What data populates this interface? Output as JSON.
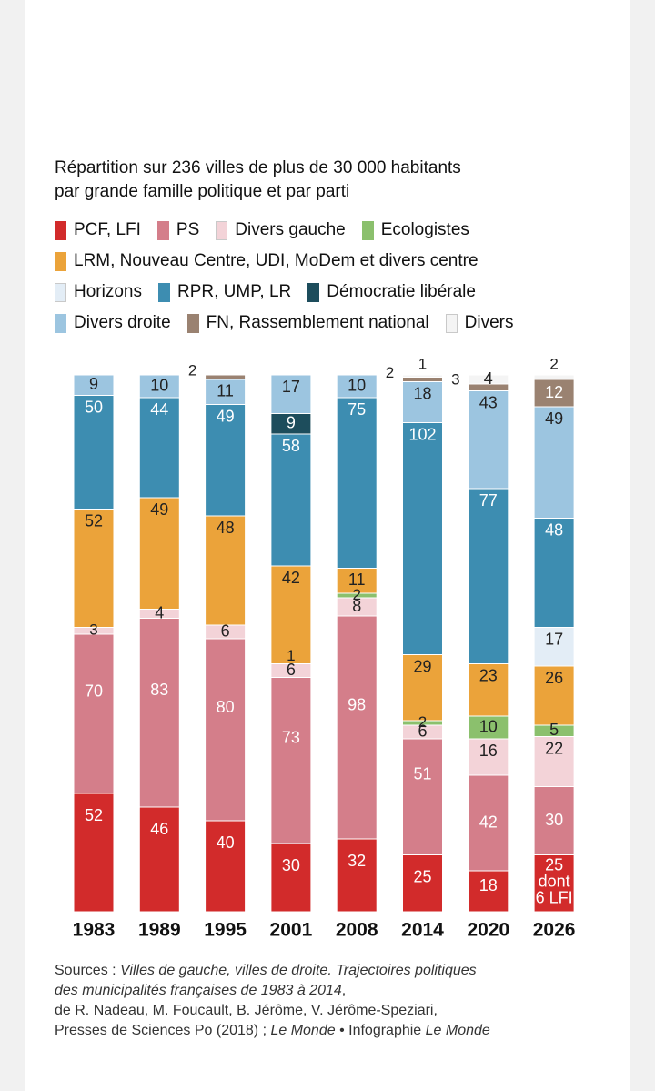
{
  "title": {
    "line1": "Répartition sur 236 villes de plus de 30 000 habitants",
    "line2": "par grande famille politique et par parti"
  },
  "legend": {
    "rows": [
      [
        {
          "label": "PCF, LFI",
          "color": "#d22b2b"
        },
        {
          "label": "PS",
          "color": "#d47e8a"
        },
        {
          "label": "Divers gauche",
          "color": "#f3d3d8"
        },
        {
          "label": "Ecologistes",
          "color": "#8bc06d"
        }
      ],
      [
        {
          "label": "LRM, Nouveau Centre, UDI, MoDem et divers centre",
          "color": "#eba33a"
        }
      ],
      [
        {
          "label": "Horizons",
          "color": "#e3edf6"
        },
        {
          "label": "RPR, UMP, LR",
          "color": "#3d8db1"
        },
        {
          "label": "Démocratie libérale",
          "color": "#1d4d5c"
        }
      ],
      [
        {
          "label": "Divers droite",
          "color": "#9cc5e0"
        },
        {
          "label": "FN, Rassemblement national",
          "color": "#9a8271"
        },
        {
          "label": "Divers",
          "color": "#f4f4f4"
        }
      ]
    ]
  },
  "chart_data": {
    "type": "bar",
    "stacked": true,
    "total": 236,
    "categories": [
      "1983",
      "1989",
      "1995",
      "2001",
      "2008",
      "2014",
      "2020",
      "2026"
    ],
    "series": [
      {
        "name": "PCF, LFI",
        "color": "#d22b2b",
        "values": [
          52,
          46,
          40,
          30,
          32,
          25,
          18,
          25
        ]
      },
      {
        "name": "PS",
        "color": "#d47e8a",
        "values": [
          70,
          83,
          80,
          73,
          98,
          51,
          42,
          30
        ]
      },
      {
        "name": "Divers gauche",
        "color": "#f3d3d8",
        "values": [
          3,
          4,
          6,
          6,
          8,
          6,
          16,
          22
        ]
      },
      {
        "name": "Ecologistes",
        "color": "#8bc06d",
        "values": [
          0,
          0,
          0,
          0,
          2,
          2,
          10,
          5
        ]
      },
      {
        "name": "LRM, Nouveau Centre, UDI, MoDem et divers centre",
        "color": "#eba33a",
        "values": [
          52,
          49,
          48,
          43,
          11,
          29,
          23,
          26
        ]
      },
      {
        "name": "Horizons",
        "color": "#e3edf6",
        "values": [
          0,
          0,
          0,
          0,
          0,
          0,
          0,
          17
        ]
      },
      {
        "name": "RPR, UMP, LR",
        "color": "#3d8db1",
        "values": [
          50,
          44,
          49,
          58,
          75,
          102,
          77,
          48
        ]
      },
      {
        "name": "Démocratie libérale",
        "color": "#1d4d5c",
        "values": [
          0,
          0,
          0,
          9,
          0,
          0,
          0,
          0
        ]
      },
      {
        "name": "Divers droite",
        "color": "#9cc5e0",
        "values": [
          9,
          10,
          11,
          17,
          10,
          18,
          43,
          49
        ]
      },
      {
        "name": "FN, Rassemblement national",
        "color": "#9a8271",
        "values": [
          0,
          0,
          2,
          0,
          0,
          2,
          3,
          12
        ]
      },
      {
        "name": "Divers",
        "color": "#f4f4f4",
        "values": [
          0,
          0,
          0,
          0,
          0,
          1,
          4,
          2
        ]
      }
    ],
    "labels": [
      {
        "category": "1983",
        "series": "PCF, LFI",
        "text": "52"
      },
      {
        "category": "1983",
        "series": "PS",
        "text": "70"
      },
      {
        "category": "1983",
        "series": "Divers gauche",
        "text": "3"
      },
      {
        "category": "1983",
        "series": "LRM, Nouveau Centre, UDI, MoDem et divers centre",
        "text": "52"
      },
      {
        "category": "1983",
        "series": "RPR, UMP, LR",
        "text": "50"
      },
      {
        "category": "1983",
        "series": "Divers droite",
        "text": "9"
      },
      {
        "category": "1989",
        "series": "PCF, LFI",
        "text": "46"
      },
      {
        "category": "1989",
        "series": "PS",
        "text": "83"
      },
      {
        "category": "1989",
        "series": "Divers gauche",
        "text": "4"
      },
      {
        "category": "1989",
        "series": "LRM, Nouveau Centre, UDI, MoDem et divers centre",
        "text": "49"
      },
      {
        "category": "1989",
        "series": "RPR, UMP, LR",
        "text": "44"
      },
      {
        "category": "1989",
        "series": "Divers droite",
        "text": "10"
      },
      {
        "category": "1995",
        "series": "PCF, LFI",
        "text": "40"
      },
      {
        "category": "1995",
        "series": "PS",
        "text": "80"
      },
      {
        "category": "1995",
        "series": "Divers gauche",
        "text": "6"
      },
      {
        "category": "1995",
        "series": "LRM, Nouveau Centre, UDI, MoDem et divers centre",
        "text": "48"
      },
      {
        "category": "1995",
        "series": "RPR, UMP, LR",
        "text": "49"
      },
      {
        "category": "1995",
        "series": "Divers droite",
        "text": "11"
      },
      {
        "category": "1995",
        "series": "FN, Rassemblement national",
        "text": "2"
      },
      {
        "category": "2001",
        "series": "PCF, LFI",
        "text": "30"
      },
      {
        "category": "2001",
        "series": "PS",
        "text": "73"
      },
      {
        "category": "2001",
        "series": "Divers gauche",
        "text": "6"
      },
      {
        "category": "2001",
        "series": "LRM, Nouveau Centre, UDI, MoDem et divers centre",
        "text": "1"
      },
      {
        "category": "2001",
        "series": "LRM, Nouveau Centre, UDI, MoDem et divers centre",
        "text": "42"
      },
      {
        "category": "2001",
        "series": "RPR, UMP, LR",
        "text": "58"
      },
      {
        "category": "2001",
        "series": "Démocratie libérale",
        "text": "9"
      },
      {
        "category": "2001",
        "series": "Divers droite",
        "text": "17"
      },
      {
        "category": "2008",
        "series": "PCF, LFI",
        "text": "32"
      },
      {
        "category": "2008",
        "series": "PS",
        "text": "98"
      },
      {
        "category": "2008",
        "series": "Divers gauche",
        "text": "8"
      },
      {
        "category": "2008",
        "series": "Ecologistes",
        "text": "2"
      },
      {
        "category": "2008",
        "series": "LRM, Nouveau Centre, UDI, MoDem et divers centre",
        "text": "11"
      },
      {
        "category": "2008",
        "series": "RPR, UMP, LR",
        "text": "75"
      },
      {
        "category": "2008",
        "series": "Divers droite",
        "text": "10"
      },
      {
        "category": "2014",
        "series": "PCF, LFI",
        "text": "25"
      },
      {
        "category": "2014",
        "series": "PS",
        "text": "51"
      },
      {
        "category": "2014",
        "series": "Divers gauche",
        "text": "6"
      },
      {
        "category": "2014",
        "series": "Ecologistes",
        "text": "2"
      },
      {
        "category": "2014",
        "series": "LRM, Nouveau Centre, UDI, MoDem et divers centre",
        "text": "29"
      },
      {
        "category": "2014",
        "series": "RPR, UMP, LR",
        "text": "102"
      },
      {
        "category": "2014",
        "series": "Divers droite",
        "text": "18"
      },
      {
        "category": "2014",
        "series": "FN, Rassemblement national",
        "text": "2"
      },
      {
        "category": "2014",
        "series": "Divers",
        "text": "1"
      },
      {
        "category": "2020",
        "series": "PCF, LFI",
        "text": "18"
      },
      {
        "category": "2020",
        "series": "PS",
        "text": "42"
      },
      {
        "category": "2020",
        "series": "Divers gauche",
        "text": "16"
      },
      {
        "category": "2020",
        "series": "Ecologistes",
        "text": "10"
      },
      {
        "category": "2020",
        "series": "LRM, Nouveau Centre, UDI, MoDem et divers centre",
        "text": "23"
      },
      {
        "category": "2020",
        "series": "RPR, UMP, LR",
        "text": "77"
      },
      {
        "category": "2020",
        "series": "Divers droite",
        "text": "43"
      },
      {
        "category": "2020",
        "series": "FN, Rassemblement national",
        "text": "3"
      },
      {
        "category": "2020",
        "series": "Divers",
        "text": "4"
      },
      {
        "category": "2026",
        "series": "PCF, LFI",
        "text": "25\ndont\n6 LFI"
      },
      {
        "category": "2026",
        "series": "PS",
        "text": "30"
      },
      {
        "category": "2026",
        "series": "Divers gauche",
        "text": "22"
      },
      {
        "category": "2026",
        "series": "Ecologistes",
        "text": "5"
      },
      {
        "category": "2026",
        "series": "LRM, Nouveau Centre, UDI, MoDem et divers centre",
        "text": "26"
      },
      {
        "category": "2026",
        "series": "Horizons",
        "text": "17"
      },
      {
        "category": "2026",
        "series": "RPR, UMP, LR",
        "text": "48"
      },
      {
        "category": "2026",
        "series": "Divers droite",
        "text": "49"
      },
      {
        "category": "2026",
        "series": "FN, Rassemblement national",
        "text": "12"
      },
      {
        "category": "2026",
        "series": "Divers",
        "text": "2"
      }
    ]
  },
  "sources": {
    "prefix": "Sources : ",
    "book_title_1": "Villes de gauche, villes de droite. Trajectoires politiques",
    "book_title_2": "des municipalités françaises de 1983 à 2014",
    "comma": ",",
    "authors": "de R. Nadeau, M. Foucault, B. Jérôme, V. Jérôme-Speziari,",
    "publisher": "Presses de Sciences Po (2018) ; ",
    "le_monde": "Le Monde",
    "separator": " • ",
    "infographie": "Infographie ",
    "le_monde_2": "Le Monde"
  }
}
